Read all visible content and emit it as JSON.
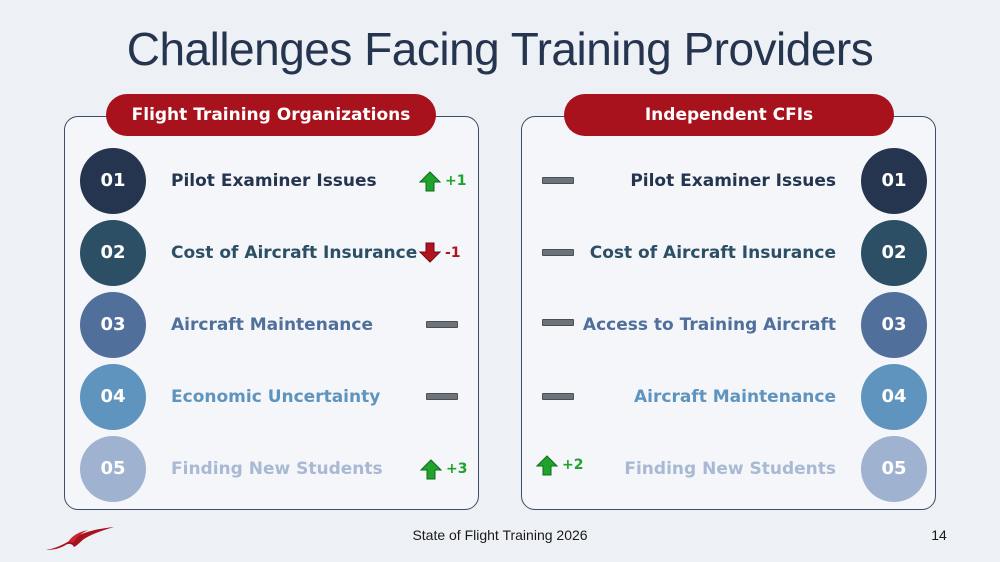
{
  "title": "Challenges Facing Training Providers",
  "left_panel": {
    "header": "Flight Training Organizations",
    "rows": [
      {
        "num": "01",
        "label": "Pilot Examiner Issues",
        "trend": "up",
        "change": "+1"
      },
      {
        "num": "02",
        "label": "Cost of Aircraft Insurance",
        "trend": "down",
        "change": "-1"
      },
      {
        "num": "03",
        "label": "Aircraft Maintenance",
        "trend": "none",
        "change": ""
      },
      {
        "num": "04",
        "label": "Economic Uncertainty",
        "trend": "none",
        "change": ""
      },
      {
        "num": "05",
        "label": "Finding New Students",
        "trend": "up",
        "change": "+3"
      }
    ]
  },
  "right_panel": {
    "header": "Independent CFIs",
    "rows": [
      {
        "num": "01",
        "label": "Pilot Examiner Issues",
        "trend": "none",
        "change": ""
      },
      {
        "num": "02",
        "label": "Cost of Aircraft Insurance",
        "trend": "none",
        "change": ""
      },
      {
        "num": "03",
        "label": "Access to Training Aircraft",
        "trend": "none",
        "change": ""
      },
      {
        "num": "04",
        "label": "Aircraft Maintenance",
        "trend": "none",
        "change": ""
      },
      {
        "num": "05",
        "label": "Finding New Students",
        "trend": "up",
        "change": "+2"
      }
    ]
  },
  "rank_colors": [
    "#25354f",
    "#2d4f66",
    "#506f9b",
    "#5e94bd",
    "#9fb2cf"
  ],
  "label_colors": [
    "#25354f",
    "#2d4f66",
    "#506f9b",
    "#5e94bd",
    "#a9b9d3"
  ],
  "accent_color": "#a8121d",
  "footer": "State of Flight Training 2026",
  "page_number": "14"
}
